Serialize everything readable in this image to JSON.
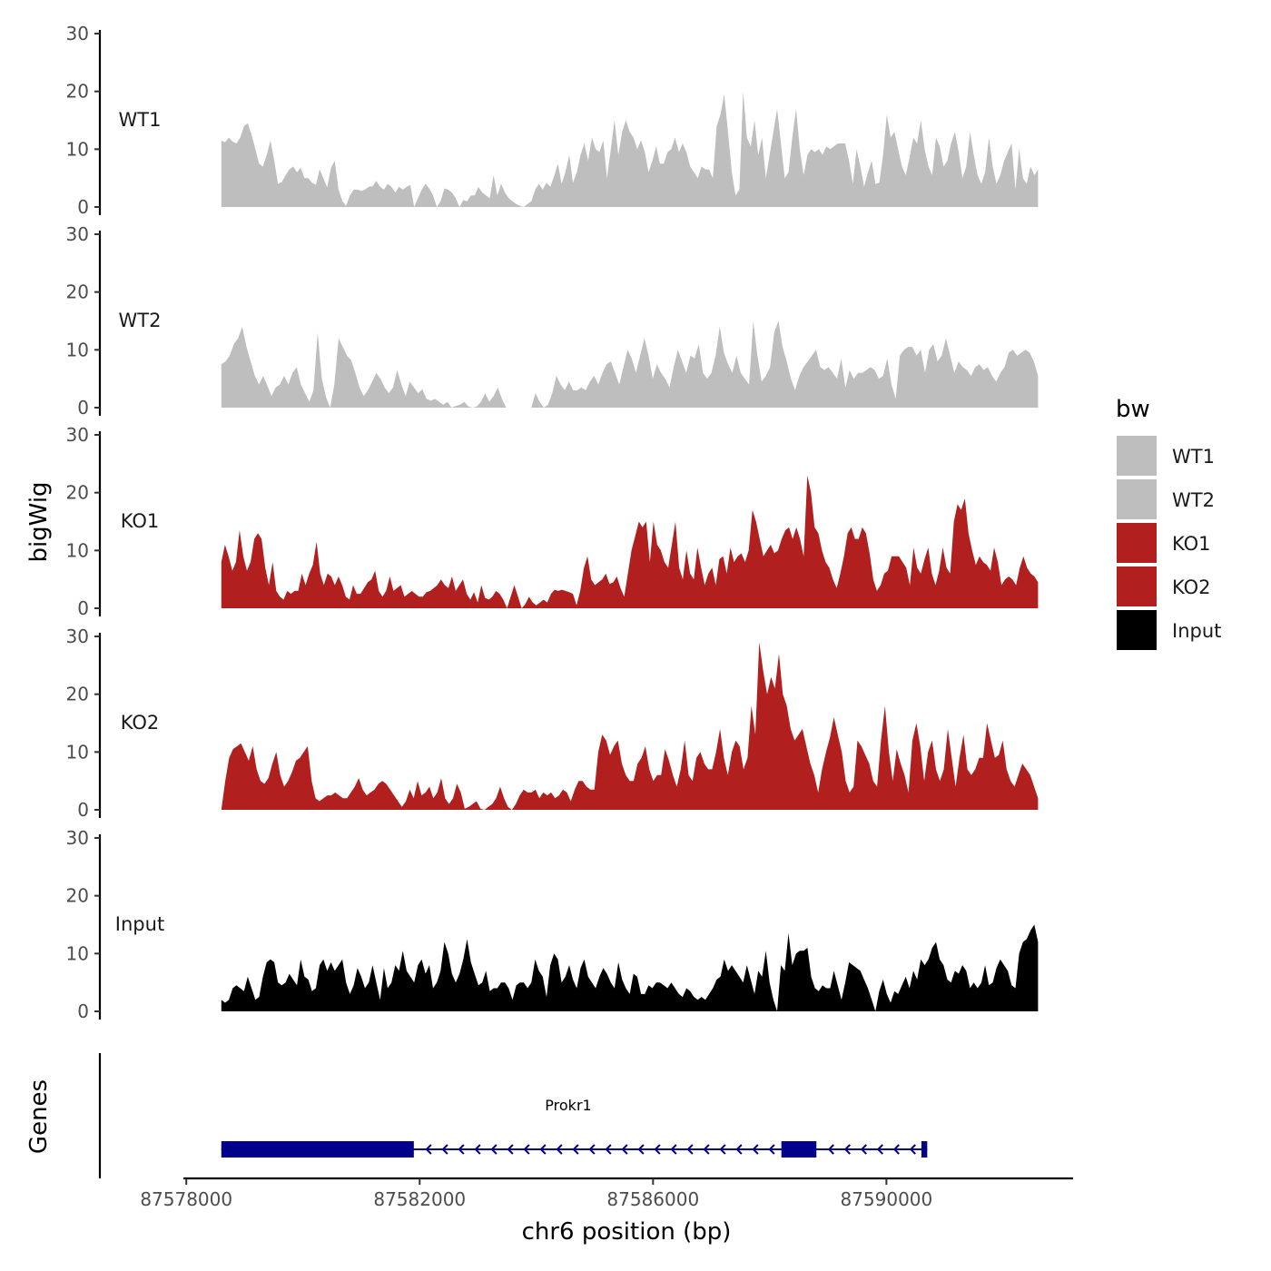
{
  "chart_data": {
    "type": "area",
    "title": "",
    "xlabel": "chr6 position (bp)",
    "ylabel": "bigWig",
    "genes_track_label": "Genes",
    "xlim": [
      87577950,
      87593200
    ],
    "data_range": [
      87578600,
      87592600
    ],
    "ylim": [
      0,
      30
    ],
    "y_ticks": [
      0,
      10,
      20,
      30
    ],
    "x_ticks": [
      87578000,
      87582000,
      87586000,
      87590000
    ],
    "x_tick_labels": [
      "87578000",
      "87582000",
      "87586000",
      "87590000"
    ],
    "legend": {
      "title": "bw",
      "position": "right",
      "entries": [
        {
          "label": "WT1",
          "color": "#bebebe"
        },
        {
          "label": "WT2",
          "color": "#bebebe"
        },
        {
          "label": "KO1",
          "color": "#b21f1f"
        },
        {
          "label": "KO2",
          "color": "#b21f1f"
        },
        {
          "label": "Input",
          "color": "#000000"
        }
      ]
    },
    "series": [
      {
        "name": "WT1",
        "color": "#bebebe",
        "values": [
          11.5,
          11.2,
          12,
          11.3,
          11,
          12,
          14,
          14.5,
          12.5,
          10,
          7.5,
          7,
          9,
          11.5,
          8,
          4,
          4.3,
          5.5,
          6.5,
          7,
          6,
          6.8,
          5,
          5,
          4.2,
          3.8,
          6.5,
          5,
          3.4,
          6.8,
          8,
          3,
          1,
          0.2,
          2,
          3,
          3,
          2.8,
          3,
          3.5,
          3.6,
          4.5,
          3.5,
          3,
          4,
          3.5,
          2.5,
          3.5,
          3,
          3.5,
          3.8,
          0,
          1.5,
          3,
          4,
          3.2,
          2,
          0,
          1,
          3.2,
          3,
          2.5,
          1.5,
          0,
          1.2,
          1,
          2,
          2,
          3.5,
          2.5,
          2,
          1.5,
          5.5,
          2,
          4,
          2.5,
          1.5,
          1,
          0.5,
          0.2,
          0,
          0.5,
          1,
          3,
          4,
          3,
          4.2,
          3.5,
          5.3,
          7.5,
          4,
          6,
          9,
          4.2,
          6,
          9,
          11,
          8,
          12,
          10,
          9.5,
          11.5,
          5,
          10,
          15,
          9,
          13,
          15,
          13,
          12,
          10,
          11.5,
          9.5,
          6,
          8,
          10.5,
          7.5,
          7.5,
          9.5,
          10,
          12,
          9.5,
          11,
          9.5,
          7,
          6,
          5,
          7,
          6.5,
          6.5,
          5,
          14,
          16,
          19.5,
          13,
          6,
          2,
          3,
          20,
          12,
          10.5,
          15,
          9,
          12,
          5,
          9,
          13,
          17,
          11,
          5,
          6,
          12,
          17,
          10,
          5.5,
          9,
          10,
          9.5,
          10,
          9,
          10.5,
          10,
          10.5,
          11,
          11,
          11,
          8,
          4,
          10,
          7,
          3.5,
          6,
          8,
          4,
          4.2,
          9,
          16,
          12,
          13,
          10,
          7,
          5.5,
          8.5,
          12,
          11,
          15,
          10,
          7,
          5.5,
          12,
          10.5,
          7,
          8,
          11,
          13,
          9.5,
          5,
          7,
          13,
          9,
          5.5,
          4,
          6,
          12,
          7,
          4,
          5.5,
          8,
          9.5,
          11,
          3,
          10,
          5,
          4,
          7,
          5.5,
          6.5
        ]
      },
      {
        "name": "WT2",
        "color": "#bebebe",
        "values": [
          7.5,
          8,
          9,
          11,
          12,
          14,
          10.5,
          8,
          5.5,
          4,
          5.5,
          3.8,
          2,
          3.5,
          4,
          5.5,
          4,
          6,
          7,
          4,
          2.5,
          1,
          3,
          13,
          5,
          1.8,
          0,
          4,
          12,
          10.5,
          9,
          8.2,
          6,
          3.5,
          2,
          3,
          4.5,
          6,
          5,
          3.5,
          2.5,
          3.5,
          6.5,
          4,
          2,
          4.5,
          3.5,
          2.5,
          3.2,
          1.5,
          1.2,
          1.5,
          1,
          0.5,
          1,
          0,
          0.3,
          0.5,
          1,
          0.2,
          0,
          0.2,
          1,
          2.5,
          1,
          2,
          3.5,
          1.5,
          0,
          0,
          0,
          0,
          0,
          0,
          0,
          2.5,
          1,
          0,
          0.5,
          2.5,
          5.5,
          4,
          3,
          4.5,
          3,
          3,
          3.5,
          3,
          4.5,
          5.5,
          4,
          6,
          7.5,
          8,
          6,
          4,
          7,
          10,
          8.5,
          6,
          9,
          12,
          9,
          5,
          7.5,
          6,
          5,
          3.5,
          7,
          10,
          8,
          6,
          9,
          8.5,
          11,
          6,
          5,
          6,
          9,
          14,
          9.5,
          7.5,
          6,
          9,
          6,
          5,
          4,
          15,
          9,
          4.5,
          5.5,
          7,
          13,
          15,
          10.5,
          8,
          5,
          3,
          5.5,
          7,
          8,
          9,
          10,
          7,
          6.5,
          7,
          6,
          5,
          8.5,
          3.5,
          6.5,
          5,
          6,
          6,
          6.5,
          7,
          6.5,
          5,
          5.5,
          8.5,
          4,
          1.5,
          9,
          10,
          10.5,
          10.5,
          9,
          10,
          6,
          10,
          11,
          8,
          9,
          12,
          9,
          6,
          8,
          7,
          6.5,
          5.5,
          7,
          7.5,
          6.5,
          7,
          5.5,
          4.5,
          6,
          7,
          9.5,
          10,
          9,
          9.5,
          10,
          9.5,
          8,
          5.5
        ]
      },
      {
        "name": "KO1",
        "color": "#b21f1f",
        "values": [
          8,
          11,
          9,
          6.5,
          8,
          13.5,
          9,
          6.5,
          8,
          12,
          13,
          12,
          7,
          4,
          8,
          3,
          2,
          1.5,
          3,
          2.5,
          3,
          3,
          6,
          4,
          6,
          7.5,
          11.5,
          6,
          4,
          6,
          5.5,
          4,
          5.5,
          4,
          2,
          1.5,
          4,
          2.5,
          2.5,
          3.5,
          4.5,
          5,
          6.5,
          3,
          2,
          3,
          5.5,
          3,
          3.5,
          4,
          2,
          2.5,
          3,
          2.5,
          2,
          2,
          2.8,
          3,
          3.5,
          4,
          5,
          4,
          3.5,
          5.5,
          3,
          4,
          5,
          2.5,
          1.5,
          2.8,
          1,
          4,
          1.8,
          1.5,
          2,
          3,
          2.5,
          1.5,
          0,
          2,
          4,
          2,
          0,
          0.7,
          2,
          1,
          0.5,
          1,
          1.5,
          1,
          2.5,
          3.2,
          3,
          3.2,
          3,
          2.8,
          2.5,
          0.5,
          3,
          7,
          9,
          5,
          4,
          4.5,
          5,
          6,
          4.2,
          4.5,
          5.5,
          3.5,
          2,
          6,
          10,
          12.5,
          15,
          14,
          15,
          8,
          15,
          11,
          10,
          8,
          7,
          11,
          15,
          7,
          5,
          10,
          6,
          5,
          10.5,
          7,
          4,
          6,
          7,
          4,
          8.5,
          9,
          6,
          10.5,
          8,
          9,
          9.5,
          8,
          10,
          17,
          15,
          12,
          9,
          10,
          11,
          9.5,
          10,
          12,
          13.5,
          14,
          12,
          14,
          12,
          9,
          23,
          20,
          14,
          13,
          10,
          8,
          7,
          5,
          3.5,
          6,
          9,
          13,
          14,
          12,
          12,
          14,
          13,
          9.5,
          5,
          3,
          4,
          6,
          6.5,
          9,
          9,
          9,
          8,
          7,
          4,
          10.5,
          7,
          6,
          8.5,
          10.5,
          6,
          4,
          6.5,
          10.5,
          7,
          6,
          15,
          18,
          17,
          19,
          13,
          10,
          7.5,
          9,
          8,
          7.5,
          6.5,
          10.5,
          8,
          4,
          5,
          5.5,
          5,
          4,
          7,
          9,
          7,
          6,
          5.5,
          4.5
        ]
      },
      {
        "name": "KO2",
        "color": "#b21f1f",
        "values": [
          0,
          5,
          9,
          10.5,
          11,
          11.5,
          10,
          8.5,
          11,
          7,
          5,
          4.5,
          5.5,
          8,
          10,
          6,
          4,
          5,
          6.5,
          8.5,
          9,
          10,
          11,
          5,
          2,
          1.5,
          2,
          2.5,
          2.5,
          3,
          2.5,
          2,
          2,
          3,
          4,
          5.5,
          3.5,
          2.5,
          3,
          3.5,
          4.5,
          5,
          4.5,
          3.5,
          2.5,
          1.5,
          0.5,
          1.5,
          3.5,
          2,
          5,
          2.5,
          3,
          4,
          2,
          3,
          5.5,
          2,
          1,
          2,
          4.5,
          3,
          0.2,
          0.5,
          1,
          1.5,
          0.2,
          0,
          0.5,
          1,
          2,
          4,
          2,
          0.5,
          0,
          1,
          2.5,
          3.5,
          3,
          3,
          3.5,
          2,
          3,
          2.5,
          3,
          2,
          2.5,
          3.5,
          3,
          1.5,
          3.5,
          5,
          5,
          4,
          3.5,
          3.5,
          10,
          13,
          12,
          9.5,
          11,
          12,
          8,
          6,
          5,
          5,
          8,
          9,
          11,
          7,
          5,
          6,
          6,
          10.5,
          8.5,
          6,
          4,
          7,
          12,
          6,
          5,
          9,
          10,
          8,
          7,
          7,
          10,
          14,
          9,
          6,
          10,
          12,
          11,
          7,
          9,
          18,
          13,
          29,
          24,
          20,
          23,
          21,
          27,
          20,
          18,
          14,
          12,
          13,
          14,
          11,
          8,
          6,
          3,
          7,
          10,
          12.5,
          16,
          13,
          10,
          5,
          3,
          4,
          12,
          11,
          9.5,
          8,
          5,
          4,
          12,
          18,
          10,
          5,
          10.5,
          8,
          6,
          3,
          12,
          15,
          11,
          5,
          10,
          12,
          7,
          5,
          7,
          14,
          9,
          4,
          9,
          13,
          7,
          6,
          7,
          9,
          9,
          15,
          12,
          9,
          9.5,
          12,
          7,
          5,
          4,
          6,
          8,
          7,
          6,
          4,
          2
        ]
      },
      {
        "name": "Input",
        "color": "#000000",
        "values": [
          2,
          1.5,
          2,
          4,
          4.5,
          4,
          3.5,
          6,
          4,
          2,
          2.5,
          6,
          8.5,
          9,
          8.5,
          5,
          4.5,
          5,
          6.5,
          5.5,
          4.5,
          9,
          6,
          5.5,
          3.5,
          4,
          8,
          9,
          7,
          8.5,
          7,
          8,
          9,
          5,
          3,
          4.5,
          7.5,
          6,
          4,
          5,
          8,
          5,
          2,
          7.5,
          4,
          5,
          8,
          7,
          10.5,
          7,
          6,
          5,
          8,
          9,
          6.5,
          8,
          4,
          5,
          7,
          12,
          10,
          6.5,
          5,
          6.5,
          9,
          12.5,
          8.5,
          6.5,
          4.5,
          5,
          7,
          3.5,
          4,
          4,
          5,
          5,
          4,
          2,
          4.5,
          5,
          5,
          4,
          5,
          9,
          7,
          6,
          2.5,
          8,
          10,
          9,
          5,
          6,
          8,
          5.5,
          4,
          7.5,
          9,
          6,
          5,
          4,
          6,
          7.5,
          6.5,
          5,
          4,
          8.5,
          5.5,
          4,
          3,
          6.5,
          6,
          3,
          3,
          4.5,
          4,
          5,
          5,
          4.5,
          4,
          5,
          4,
          3,
          2.5,
          4,
          3.5,
          2.5,
          2,
          2.5,
          2,
          3,
          4,
          5.5,
          6,
          9,
          7,
          8,
          7,
          6,
          5,
          8,
          5.5,
          3,
          7,
          6,
          10.5,
          5,
          2,
          0,
          8,
          7,
          13.5,
          8,
          10,
          10.5,
          10.5,
          11,
          6,
          4,
          3.5,
          4.5,
          4,
          4,
          7,
          4.5,
          2,
          5,
          8.5,
          8,
          7.5,
          7,
          5.5,
          4,
          2,
          0,
          3.5,
          5.5,
          3,
          1.5,
          3.5,
          3,
          4.5,
          6,
          4,
          7,
          5.5,
          9,
          8,
          9,
          11,
          12,
          9,
          8,
          5.5,
          5,
          7,
          6.5,
          8,
          7,
          4,
          5,
          4,
          5,
          8,
          4.5,
          5,
          7.5,
          9,
          8,
          7,
          4.5,
          4,
          10,
          12,
          12.5,
          14,
          15,
          12
        ]
      }
    ],
    "gene": {
      "name": "Prokr1",
      "strand": "-",
      "span": [
        87578600,
        87590700
      ],
      "exons": [
        [
          87578600,
          87581900
        ],
        [
          87588200,
          87588800
        ],
        [
          87590600,
          87590700
        ]
      ],
      "color": "#00008b"
    }
  }
}
